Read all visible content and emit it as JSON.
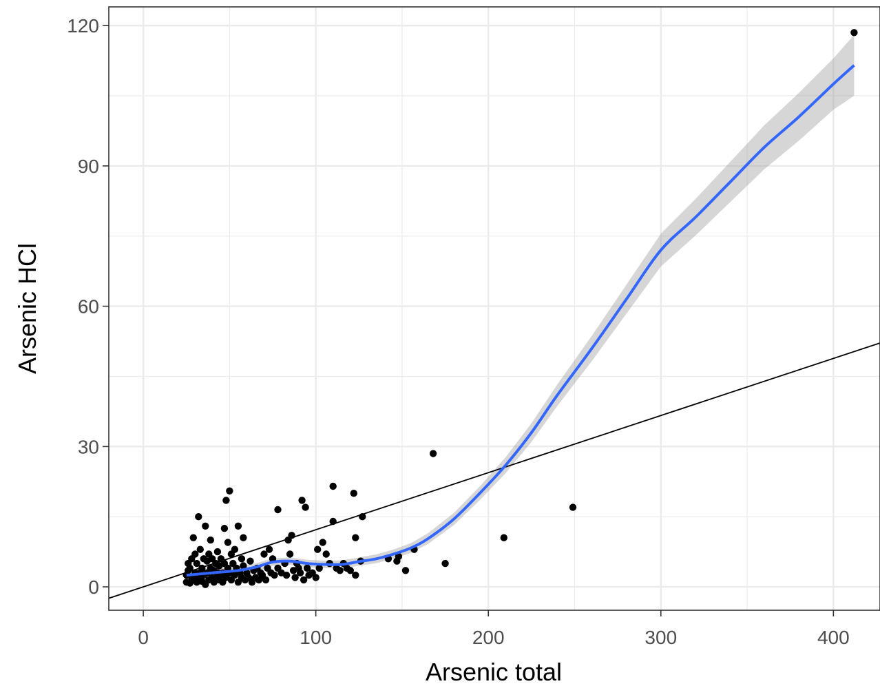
{
  "chart_data": {
    "type": "scatter",
    "xlabel": "Arsenic total",
    "ylabel": "Arsenic HCl",
    "xlim": [
      -20,
      427
    ],
    "ylim": [
      -5,
      124
    ],
    "x_ticks": [
      0,
      100,
      200,
      300,
      400
    ],
    "y_ticks": [
      0,
      30,
      60,
      90,
      120
    ],
    "x_tick_labels": [
      "0",
      "100",
      "200",
      "300",
      "400"
    ],
    "y_tick_labels": [
      "0",
      "30",
      "60",
      "90",
      "120"
    ],
    "grid": true,
    "legend": "none",
    "colors": {
      "points": "#000000",
      "smooth": "#3366ff",
      "ribbon": "#999999",
      "reference_line": "#000000",
      "grid": "#ebebeb",
      "panel_border": "#333333"
    },
    "reference_line": {
      "intercept": 0,
      "slope": 0.1221
    },
    "points": [
      [
        25,
        1
      ],
      [
        25,
        2.5
      ],
      [
        26,
        3.5
      ],
      [
        26,
        5
      ],
      [
        27,
        0.8
      ],
      [
        27,
        4
      ],
      [
        28,
        2
      ],
      [
        28,
        6
      ],
      [
        29,
        10.5
      ],
      [
        29,
        1.5
      ],
      [
        30,
        3
      ],
      [
        30,
        7
      ],
      [
        31,
        5
      ],
      [
        31,
        1
      ],
      [
        32,
        15
      ],
      [
        32,
        2
      ],
      [
        33,
        8
      ],
      [
        33,
        3
      ],
      [
        34,
        4
      ],
      [
        34,
        1.2
      ],
      [
        35,
        6
      ],
      [
        35,
        2.5
      ],
      [
        36,
        13
      ],
      [
        36,
        0.5
      ],
      [
        37,
        5.5
      ],
      [
        37,
        3
      ],
      [
        38,
        1.5
      ],
      [
        38,
        7
      ],
      [
        39,
        4
      ],
      [
        39,
        10
      ],
      [
        40,
        2
      ],
      [
        40,
        6
      ],
      [
        41,
        3.5
      ],
      [
        41,
        1
      ],
      [
        42,
        5
      ],
      [
        42,
        2
      ],
      [
        43,
        7.5
      ],
      [
        43,
        3
      ],
      [
        44,
        1.5
      ],
      [
        44,
        4.5
      ],
      [
        45,
        2.5
      ],
      [
        45,
        6
      ],
      [
        46,
        3
      ],
      [
        46,
        1
      ],
      [
        47,
        12.5
      ],
      [
        47,
        5
      ],
      [
        48,
        2
      ],
      [
        48,
        18.5
      ],
      [
        49,
        4
      ],
      [
        49,
        9.5
      ],
      [
        50,
        20.5
      ],
      [
        50,
        3
      ],
      [
        51,
        7
      ],
      [
        51,
        1.5
      ],
      [
        52,
        5
      ],
      [
        53,
        2.5
      ],
      [
        53,
        8
      ],
      [
        54,
        4
      ],
      [
        55,
        13
      ],
      [
        55,
        1
      ],
      [
        56,
        3
      ],
      [
        57,
        6
      ],
      [
        57,
        2
      ],
      [
        58,
        10.5
      ],
      [
        58,
        4.5
      ],
      [
        59,
        1.5
      ],
      [
        60,
        3
      ],
      [
        61,
        2
      ],
      [
        62,
        5.5
      ],
      [
        63,
        1
      ],
      [
        64,
        3.5
      ],
      [
        65,
        2
      ],
      [
        66,
        4
      ],
      [
        67,
        1.5
      ],
      [
        68,
        3
      ],
      [
        69,
        2.5
      ],
      [
        70,
        7
      ],
      [
        71,
        1.5
      ],
      [
        72,
        4
      ],
      [
        73,
        8
      ],
      [
        74,
        3
      ],
      [
        75,
        6
      ],
      [
        76,
        2.5
      ],
      [
        78,
        16.5
      ],
      [
        78,
        4
      ],
      [
        80,
        3
      ],
      [
        82,
        5
      ],
      [
        83,
        2.5
      ],
      [
        84,
        10
      ],
      [
        85,
        7
      ],
      [
        86,
        11
      ],
      [
        87,
        3.5
      ],
      [
        88,
        2
      ],
      [
        89,
        5
      ],
      [
        90,
        4
      ],
      [
        91,
        3
      ],
      [
        92,
        18.5
      ],
      [
        93,
        1.5
      ],
      [
        94,
        17
      ],
      [
        95,
        4
      ],
      [
        96,
        2.5
      ],
      [
        98,
        3
      ],
      [
        100,
        2
      ],
      [
        101,
        8
      ],
      [
        102,
        4
      ],
      [
        104,
        9.5
      ],
      [
        106,
        7
      ],
      [
        108,
        5
      ],
      [
        110,
        21.5
      ],
      [
        110,
        14
      ],
      [
        112,
        4
      ],
      [
        114,
        3.5
      ],
      [
        116,
        5
      ],
      [
        118,
        4
      ],
      [
        120,
        3.5
      ],
      [
        122,
        20
      ],
      [
        123,
        10.5
      ],
      [
        123,
        2.5
      ],
      [
        126,
        5.5
      ],
      [
        127,
        15
      ],
      [
        142,
        6
      ],
      [
        147,
        5.5
      ],
      [
        148,
        6.5
      ],
      [
        152,
        3.5
      ],
      [
        157,
        8
      ],
      [
        168,
        28.5
      ],
      [
        175,
        5
      ],
      [
        209,
        10.5
      ],
      [
        249,
        17
      ],
      [
        412,
        118.5
      ]
    ],
    "smooth": [
      [
        25,
        2.5
      ],
      [
        40,
        3.0
      ],
      [
        55,
        3.5
      ],
      [
        65,
        4.2
      ],
      [
        75,
        5.3
      ],
      [
        85,
        5.5
      ],
      [
        95,
        5.0
      ],
      [
        105,
        4.8
      ],
      [
        115,
        4.8
      ],
      [
        125,
        5.4
      ],
      [
        135,
        6.0
      ],
      [
        145,
        7.0
      ],
      [
        155,
        8.3
      ],
      [
        165,
        10.3
      ],
      [
        180,
        14.5
      ],
      [
        195,
        20.0
      ],
      [
        210,
        26.0
      ],
      [
        225,
        33.0
      ],
      [
        240,
        41.0
      ],
      [
        260,
        51.0
      ],
      [
        280,
        61.5
      ],
      [
        300,
        72.0
      ],
      [
        320,
        79.0
      ],
      [
        340,
        86.5
      ],
      [
        360,
        94.0
      ],
      [
        380,
        100.5
      ],
      [
        400,
        107.5
      ],
      [
        412,
        111.5
      ]
    ],
    "ribbon_halfwidth": [
      [
        25,
        1.2
      ],
      [
        60,
        0.8
      ],
      [
        100,
        0.8
      ],
      [
        150,
        1.0
      ],
      [
        200,
        1.5
      ],
      [
        250,
        2.5
      ],
      [
        300,
        3.5
      ],
      [
        350,
        4.5
      ],
      [
        400,
        5.5
      ],
      [
        412,
        6.5
      ]
    ]
  }
}
